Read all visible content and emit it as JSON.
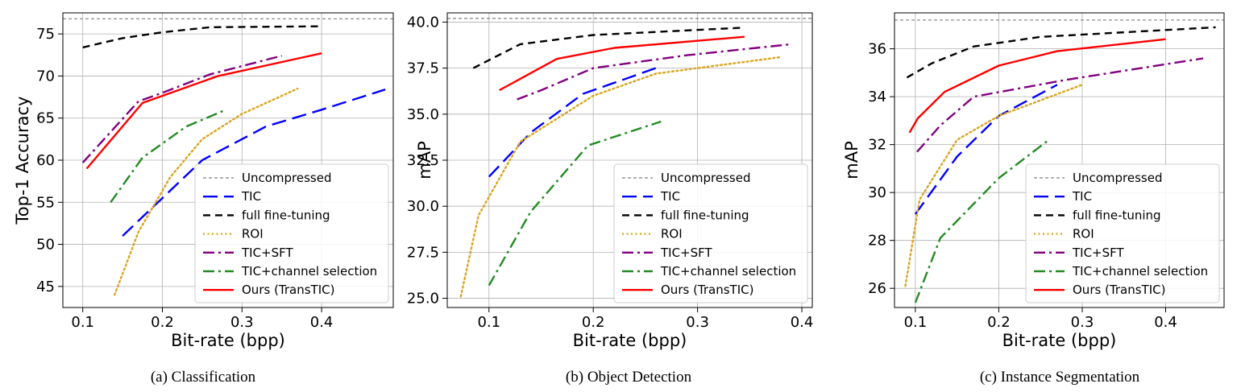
{
  "figure": {
    "legend_labels": [
      "Uncompressed",
      "TIC",
      "full fine-tuning",
      "ROI",
      "TIC+SFT",
      "TIC+channel selection",
      "Ours (TransTIC)"
    ]
  },
  "colors": {
    "Uncompressed": "#808080",
    "TIC": "#0000ff",
    "full fine-tuning": "#000000",
    "ROI": "#daa520",
    "TIC+SFT": "#800080",
    "TIC+channel selection": "#228b22",
    "Ours (TransTIC)": "#ff0000"
  },
  "chart_data": [
    {
      "type": "line",
      "caption": "(a)  Classification",
      "xlabel": "Bit-rate (bpp)",
      "ylabel": "Top-1 Accuracy",
      "xlim": [
        0.075,
        0.49
      ],
      "ylim": [
        42.5,
        77.5
      ],
      "xticks": [
        0.1,
        0.2,
        0.3,
        0.4
      ],
      "yticks": [
        45,
        50,
        55,
        60,
        65,
        70,
        75
      ],
      "grid": true,
      "legend_position": "lower-right",
      "uncompressed": 76.8,
      "series": [
        {
          "name": "TIC",
          "x": [
            0.15,
            0.2,
            0.25,
            0.33,
            0.4,
            0.48
          ],
          "y": [
            51.0,
            55.5,
            60.0,
            64.0,
            66.0,
            68.4
          ]
        },
        {
          "name": "full fine-tuning",
          "x": [
            0.1,
            0.15,
            0.2,
            0.26,
            0.4
          ],
          "y": [
            73.4,
            74.5,
            75.2,
            75.8,
            75.9
          ]
        },
        {
          "name": "ROI",
          "x": [
            0.14,
            0.17,
            0.21,
            0.25,
            0.3,
            0.37
          ],
          "y": [
            44.0,
            51.5,
            58.0,
            62.5,
            65.5,
            68.5
          ]
        },
        {
          "name": "TIC+SFT",
          "x": [
            0.1,
            0.17,
            0.2,
            0.26,
            0.35
          ],
          "y": [
            59.7,
            67.0,
            68.0,
            70.2,
            72.4
          ]
        },
        {
          "name": "TIC+channel selection",
          "x": [
            0.135,
            0.175,
            0.23,
            0.28
          ],
          "y": [
            55.0,
            60.3,
            64.0,
            66.0
          ]
        },
        {
          "name": "Ours (TransTIC)",
          "x": [
            0.105,
            0.175,
            0.27,
            0.4
          ],
          "y": [
            59.0,
            66.8,
            70.0,
            72.7
          ]
        }
      ]
    },
    {
      "type": "line",
      "caption": "(b)  Object Detection",
      "xlabel": "Bit-rate (bpp)",
      "ylabel": "mAP",
      "xlim": [
        0.06,
        0.41
      ],
      "ylim": [
        24.5,
        40.5
      ],
      "xticks": [
        0.1,
        0.2,
        0.3,
        0.4
      ],
      "yticks": [
        25.0,
        27.5,
        30.0,
        32.5,
        35.0,
        37.5,
        40.0
      ],
      "ytick_labels": [
        "25.0",
        "27.5",
        "30.0",
        "32.5",
        "35.0",
        "37.5",
        "40.0"
      ],
      "grid": true,
      "legend_position": "lower-right",
      "uncompressed": 40.2,
      "series": [
        {
          "name": "TIC",
          "x": [
            0.1,
            0.14,
            0.19,
            0.26
          ],
          "y": [
            31.6,
            34.0,
            36.1,
            37.5
          ]
        },
        {
          "name": "full fine-tuning",
          "x": [
            0.085,
            0.13,
            0.2,
            0.345
          ],
          "y": [
            37.5,
            38.8,
            39.3,
            39.7
          ]
        },
        {
          "name": "ROI",
          "x": [
            0.073,
            0.09,
            0.13,
            0.2,
            0.26,
            0.38
          ],
          "y": [
            25.1,
            29.5,
            33.5,
            36.0,
            37.2,
            38.1
          ]
        },
        {
          "name": "TIC+SFT",
          "x": [
            0.127,
            0.15,
            0.2,
            0.29,
            0.39
          ],
          "y": [
            35.8,
            36.3,
            37.5,
            38.2,
            38.8
          ]
        },
        {
          "name": "TIC+channel selection",
          "x": [
            0.1,
            0.14,
            0.195,
            0.265
          ],
          "y": [
            25.7,
            29.7,
            33.3,
            34.6
          ]
        },
        {
          "name": "Ours (TransTIC)",
          "x": [
            0.11,
            0.165,
            0.22,
            0.345
          ],
          "y": [
            36.3,
            38.0,
            38.6,
            39.2
          ]
        }
      ]
    },
    {
      "type": "line",
      "caption": "(c)  Instance Segmentation",
      "xlabel": "Bit-rate (bpp)",
      "ylabel": "mAP",
      "xlim": [
        0.075,
        0.47
      ],
      "ylim": [
        25.2,
        37.5
      ],
      "xticks": [
        0.1,
        0.2,
        0.3,
        0.4
      ],
      "yticks": [
        26,
        28,
        30,
        32,
        34,
        36
      ],
      "grid": true,
      "legend_position": "lower-right",
      "uncompressed": 37.2,
      "series": [
        {
          "name": "TIC",
          "x": [
            0.1,
            0.15,
            0.2,
            0.27
          ],
          "y": [
            29.1,
            31.5,
            33.2,
            34.5
          ]
        },
        {
          "name": "full fine-tuning",
          "x": [
            0.09,
            0.12,
            0.17,
            0.25,
            0.46
          ],
          "y": [
            34.8,
            35.4,
            36.1,
            36.5,
            36.9
          ]
        },
        {
          "name": "ROI",
          "x": [
            0.088,
            0.105,
            0.15,
            0.2,
            0.3
          ],
          "y": [
            26.1,
            29.7,
            32.2,
            33.2,
            34.5
          ]
        },
        {
          "name": "TIC+SFT",
          "x": [
            0.102,
            0.13,
            0.17,
            0.28,
            0.445
          ],
          "y": [
            31.7,
            32.8,
            34.0,
            34.7,
            35.6
          ]
        },
        {
          "name": "TIC+channel selection",
          "x": [
            0.1,
            0.13,
            0.2,
            0.26
          ],
          "y": [
            25.4,
            28.1,
            30.6,
            32.2
          ]
        },
        {
          "name": "Ours (TransTIC)",
          "x": [
            0.093,
            0.103,
            0.135,
            0.2,
            0.27,
            0.4
          ],
          "y": [
            32.5,
            33.1,
            34.2,
            35.3,
            35.9,
            36.4
          ]
        }
      ]
    }
  ]
}
